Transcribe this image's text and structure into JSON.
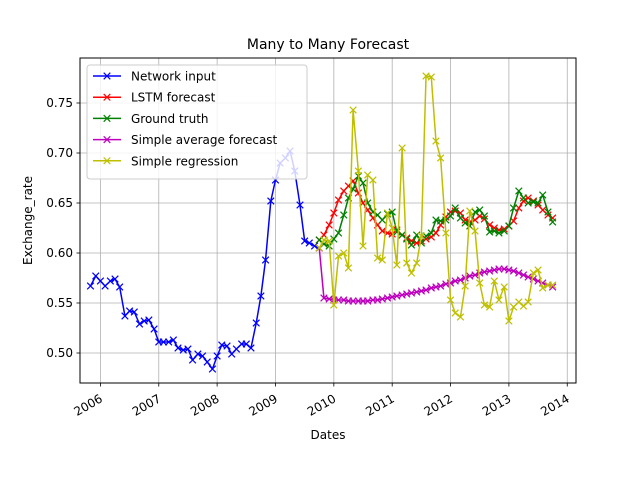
{
  "chart_data": {
    "type": "line",
    "title": "Many to Many Forecast",
    "xlabel": "Dates",
    "ylabel": "Exchange_rate",
    "xlim": [
      2005.65,
      2014.15
    ],
    "ylim": [
      0.47,
      0.795
    ],
    "grid": true,
    "legend_position": "top-left",
    "x_ticks": [
      {
        "value": 2006,
        "label": "2006"
      },
      {
        "value": 2007,
        "label": "2007"
      },
      {
        "value": 2008,
        "label": "2008"
      },
      {
        "value": 2009,
        "label": "2009"
      },
      {
        "value": 2010,
        "label": "2010"
      },
      {
        "value": 2011,
        "label": "2011"
      },
      {
        "value": 2012,
        "label": "2012"
      },
      {
        "value": 2013,
        "label": "2013"
      },
      {
        "value": 2014,
        "label": "2014"
      }
    ],
    "y_ticks": [
      {
        "value": 0.5,
        "label": "0.50"
      },
      {
        "value": 0.55,
        "label": "0.55"
      },
      {
        "value": 0.6,
        "label": "0.60"
      },
      {
        "value": 0.65,
        "label": "0.65"
      },
      {
        "value": 0.7,
        "label": "0.70"
      },
      {
        "value": 0.75,
        "label": "0.75"
      }
    ],
    "series": [
      {
        "name": "Network input",
        "color": "#0000ff",
        "x": [
          2005.83,
          2005.92,
          2006.0,
          2006.08,
          2006.17,
          2006.25,
          2006.33,
          2006.42,
          2006.5,
          2006.58,
          2006.67,
          2006.75,
          2006.83,
          2006.92,
          2007.0,
          2007.08,
          2007.17,
          2007.25,
          2007.33,
          2007.42,
          2007.5,
          2007.58,
          2007.67,
          2007.75,
          2007.83,
          2007.92,
          2008.0,
          2008.08,
          2008.17,
          2008.25,
          2008.33,
          2008.42,
          2008.5,
          2008.58,
          2008.67,
          2008.75,
          2008.83,
          2008.92,
          2009.0,
          2009.08,
          2009.17,
          2009.25,
          2009.33,
          2009.42,
          2009.5,
          2009.58,
          2009.67,
          2009.75
        ],
        "y": [
          0.567,
          0.577,
          0.572,
          0.567,
          0.572,
          0.574,
          0.566,
          0.537,
          0.542,
          0.541,
          0.529,
          0.532,
          0.533,
          0.524,
          0.511,
          0.511,
          0.511,
          0.513,
          0.505,
          0.503,
          0.504,
          0.493,
          0.499,
          0.497,
          0.491,
          0.484,
          0.497,
          0.508,
          0.507,
          0.499,
          0.504,
          0.509,
          0.509,
          0.505,
          0.53,
          0.557,
          0.593,
          0.652,
          0.673,
          0.69,
          0.695,
          0.702,
          0.682,
          0.648,
          0.612,
          0.61,
          0.607,
          0.605
        ]
      },
      {
        "name": "LSTM forecast",
        "color": "#ff0000",
        "x": [
          2009.75,
          2009.83,
          2009.92,
          2010.0,
          2010.08,
          2010.17,
          2010.25,
          2010.33,
          2010.42,
          2010.5,
          2010.58,
          2010.67,
          2010.75,
          2010.83,
          2010.92,
          2011.0,
          2011.08,
          2011.17,
          2011.25,
          2011.33,
          2011.42,
          2011.5,
          2011.58,
          2011.67,
          2011.75,
          2011.83,
          2011.92,
          2012.0,
          2012.08,
          2012.17,
          2012.25,
          2012.33,
          2012.42,
          2012.5,
          2012.58,
          2012.67,
          2012.75,
          2012.83,
          2012.92,
          2013.0,
          2013.08,
          2013.17,
          2013.25,
          2013.33,
          2013.42,
          2013.5,
          2013.58,
          2013.67,
          2013.75
        ],
        "y": [
          0.613,
          0.618,
          0.628,
          0.64,
          0.653,
          0.662,
          0.667,
          0.672,
          0.66,
          0.65,
          0.643,
          0.635,
          0.628,
          0.622,
          0.62,
          0.619,
          0.623,
          0.618,
          0.615,
          0.612,
          0.61,
          0.612,
          0.614,
          0.616,
          0.62,
          0.628,
          0.636,
          0.641,
          0.642,
          0.64,
          0.633,
          0.631,
          0.633,
          0.637,
          0.634,
          0.628,
          0.625,
          0.623,
          0.624,
          0.627,
          0.632,
          0.645,
          0.652,
          0.655,
          0.652,
          0.648,
          0.643,
          0.638,
          0.635
        ]
      },
      {
        "name": "Ground truth",
        "color": "#008000",
        "x": [
          2009.75,
          2009.83,
          2009.92,
          2010.0,
          2010.08,
          2010.17,
          2010.25,
          2010.33,
          2010.42,
          2010.5,
          2010.58,
          2010.67,
          2010.75,
          2010.83,
          2010.92,
          2011.0,
          2011.08,
          2011.17,
          2011.25,
          2011.33,
          2011.42,
          2011.5,
          2011.58,
          2011.67,
          2011.75,
          2011.83,
          2011.92,
          2012.0,
          2012.08,
          2012.17,
          2012.25,
          2012.33,
          2012.42,
          2012.5,
          2012.58,
          2012.67,
          2012.75,
          2012.83,
          2012.92,
          2013.0,
          2013.08,
          2013.17,
          2013.25,
          2013.33,
          2013.42,
          2013.5,
          2013.58,
          2013.67,
          2013.75
        ],
        "y": [
          0.613,
          0.609,
          0.607,
          0.614,
          0.62,
          0.638,
          0.655,
          0.664,
          0.677,
          0.67,
          0.65,
          0.641,
          0.638,
          0.633,
          0.639,
          0.641,
          0.621,
          0.618,
          0.614,
          0.608,
          0.618,
          0.61,
          0.617,
          0.62,
          0.633,
          0.632,
          0.633,
          0.637,
          0.645,
          0.635,
          0.63,
          0.627,
          0.641,
          0.643,
          0.637,
          0.621,
          0.622,
          0.62,
          0.622,
          0.627,
          0.645,
          0.662,
          0.655,
          0.65,
          0.651,
          0.65,
          0.658,
          0.641,
          0.631
        ]
      },
      {
        "name": "Simple average forecast",
        "color": "#bf00bf",
        "x": [
          2009.75,
          2009.83,
          2009.92,
          2010.0,
          2010.08,
          2010.17,
          2010.25,
          2010.33,
          2010.42,
          2010.5,
          2010.58,
          2010.67,
          2010.75,
          2010.83,
          2010.92,
          2011.0,
          2011.08,
          2011.17,
          2011.25,
          2011.33,
          2011.42,
          2011.5,
          2011.58,
          2011.67,
          2011.75,
          2011.83,
          2011.92,
          2012.0,
          2012.08,
          2012.17,
          2012.25,
          2012.33,
          2012.42,
          2012.5,
          2012.58,
          2012.67,
          2012.75,
          2012.83,
          2012.92,
          2013.0,
          2013.08,
          2013.17,
          2013.25,
          2013.33,
          2013.42,
          2013.5,
          2013.58,
          2013.67,
          2013.75
        ],
        "y": [
          0.605,
          0.555,
          0.554,
          0.553,
          0.553,
          0.553,
          0.552,
          0.552,
          0.552,
          0.552,
          0.552,
          0.553,
          0.553,
          0.554,
          0.555,
          0.556,
          0.557,
          0.558,
          0.559,
          0.56,
          0.561,
          0.562,
          0.563,
          0.565,
          0.566,
          0.567,
          0.569,
          0.57,
          0.572,
          0.573,
          0.575,
          0.577,
          0.578,
          0.58,
          0.581,
          0.582,
          0.583,
          0.584,
          0.584,
          0.583,
          0.582,
          0.58,
          0.578,
          0.576,
          0.574,
          0.572,
          0.57,
          0.568,
          0.566
        ]
      },
      {
        "name": "Simple regression",
        "color": "#bfbf00",
        "x": [
          2009.75,
          2009.83,
          2009.92,
          2010.0,
          2010.08,
          2010.17,
          2010.25,
          2010.33,
          2010.42,
          2010.5,
          2010.58,
          2010.67,
          2010.75,
          2010.83,
          2010.92,
          2011.0,
          2011.08,
          2011.17,
          2011.25,
          2011.33,
          2011.42,
          2011.5,
          2011.58,
          2011.67,
          2011.75,
          2011.83,
          2011.92,
          2012.0,
          2012.08,
          2012.17,
          2012.25,
          2012.33,
          2012.42,
          2012.5,
          2012.58,
          2012.67,
          2012.75,
          2012.83,
          2012.92,
          2013.0,
          2013.08,
          2013.17,
          2013.25,
          2013.33,
          2013.42,
          2013.5,
          2013.58,
          2013.67,
          2013.75
        ],
        "y": [
          0.605,
          0.613,
          0.612,
          0.548,
          0.597,
          0.6,
          0.585,
          0.743,
          0.682,
          0.607,
          0.678,
          0.673,
          0.595,
          0.593,
          0.64,
          0.625,
          0.588,
          0.705,
          0.59,
          0.58,
          0.59,
          0.617,
          0.777,
          0.776,
          0.712,
          0.695,
          0.62,
          0.553,
          0.54,
          0.536,
          0.567,
          0.642,
          0.622,
          0.57,
          0.548,
          0.546,
          0.572,
          0.553,
          0.566,
          0.532,
          0.546,
          0.551,
          0.547,
          0.551,
          0.58,
          0.583,
          0.565,
          0.568,
          0.568
        ]
      }
    ]
  }
}
